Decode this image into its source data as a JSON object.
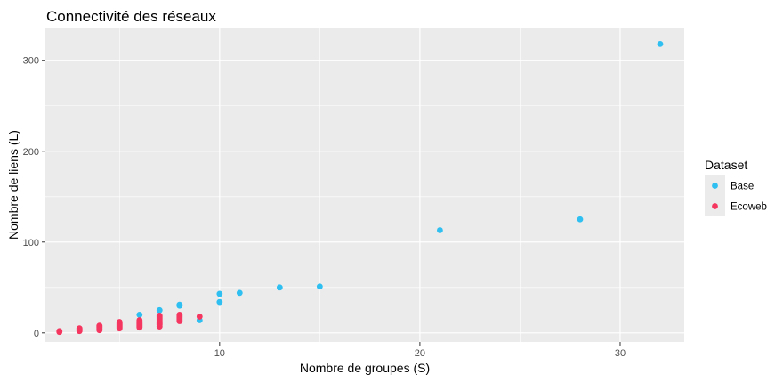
{
  "chart_data": {
    "type": "scatter",
    "title": "Connectivité des réseaux",
    "xlabel": "Nombre de groupes (S)",
    "ylabel": "Nombre de liens (L)",
    "xlim": [
      1.3,
      33.2
    ],
    "ylim": [
      -10,
      336
    ],
    "x_ticks": [
      10,
      20,
      30
    ],
    "y_ticks": [
      0,
      100,
      200,
      300
    ],
    "x_tick_labels": [
      "10",
      "20",
      "30"
    ],
    "y_tick_labels": [
      "0",
      "100",
      "200",
      "300"
    ],
    "x_minor_ticks": [
      5,
      15,
      25
    ],
    "y_minor_ticks": [
      50,
      150,
      250
    ],
    "grid": true,
    "legend": {
      "title": "Dataset",
      "placement": "right"
    },
    "series": [
      {
        "name": "Base",
        "color": "#2fbff0",
        "points": [
          [
            6,
            20
          ],
          [
            7,
            25
          ],
          [
            8,
            30
          ],
          [
            8,
            31
          ],
          [
            9,
            14
          ],
          [
            10,
            34
          ],
          [
            10,
            43
          ],
          [
            11,
            44
          ],
          [
            13,
            50
          ],
          [
            15,
            51
          ],
          [
            21,
            113
          ],
          [
            28,
            125
          ],
          [
            32,
            318
          ]
        ]
      },
      {
        "name": "Ecoweb",
        "color": "#f53760",
        "points": [
          [
            2,
            1
          ],
          [
            2,
            2
          ],
          [
            3,
            2
          ],
          [
            3,
            3
          ],
          [
            3,
            4
          ],
          [
            3,
            5
          ],
          [
            4,
            3
          ],
          [
            4,
            4
          ],
          [
            4,
            5
          ],
          [
            4,
            6
          ],
          [
            4,
            7
          ],
          [
            4,
            8
          ],
          [
            5,
            5
          ],
          [
            5,
            6
          ],
          [
            5,
            7
          ],
          [
            5,
            8
          ],
          [
            5,
            9
          ],
          [
            5,
            10
          ],
          [
            5,
            11
          ],
          [
            5,
            12
          ],
          [
            6,
            6
          ],
          [
            6,
            7
          ],
          [
            6,
            8
          ],
          [
            6,
            9
          ],
          [
            6,
            10
          ],
          [
            6,
            11
          ],
          [
            6,
            12
          ],
          [
            6,
            13
          ],
          [
            6,
            14
          ],
          [
            7,
            7
          ],
          [
            7,
            9
          ],
          [
            7,
            10
          ],
          [
            7,
            11
          ],
          [
            7,
            12
          ],
          [
            7,
            13
          ],
          [
            7,
            14
          ],
          [
            7,
            15
          ],
          [
            7,
            16
          ],
          [
            7,
            17
          ],
          [
            7,
            18
          ],
          [
            7,
            19
          ],
          [
            8,
            13
          ],
          [
            8,
            14
          ],
          [
            8,
            15
          ],
          [
            8,
            16
          ],
          [
            8,
            17
          ],
          [
            8,
            18
          ],
          [
            8,
            19
          ],
          [
            8,
            20
          ],
          [
            9,
            18
          ]
        ]
      }
    ]
  }
}
